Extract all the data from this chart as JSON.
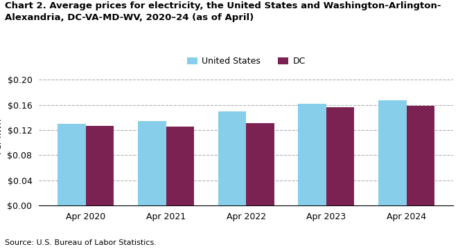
{
  "title_line1": "Chart 2. Average prices for electricity, the United States and Washington-Arlington-",
  "title_line2": "Alexandria, DC-VA-MD-WV, 2020–24 (as of April)",
  "source": "Source: U.S. Bureau of Labor Statistics.",
  "categories": [
    "Apr 2020",
    "Apr 2021",
    "Apr 2022",
    "Apr 2023",
    "Apr 2024"
  ],
  "us_values": [
    0.13,
    0.134,
    0.15,
    0.162,
    0.167
  ],
  "dc_values": [
    0.127,
    0.125,
    0.131,
    0.156,
    0.159
  ],
  "us_color": "#87CEEB",
  "dc_color": "#7B2252",
  "us_label": "United States",
  "dc_label": "DC",
  "ylim": [
    0,
    0.22
  ],
  "yticks": [
    0.0,
    0.04,
    0.08,
    0.12,
    0.16,
    0.2
  ],
  "bar_width": 0.35,
  "background_color": "#ffffff",
  "grid_color": "#b0b0b0",
  "title_fontsize": 9.5,
  "label_fontsize": 9,
  "tick_fontsize": 9,
  "source_fontsize": 8
}
